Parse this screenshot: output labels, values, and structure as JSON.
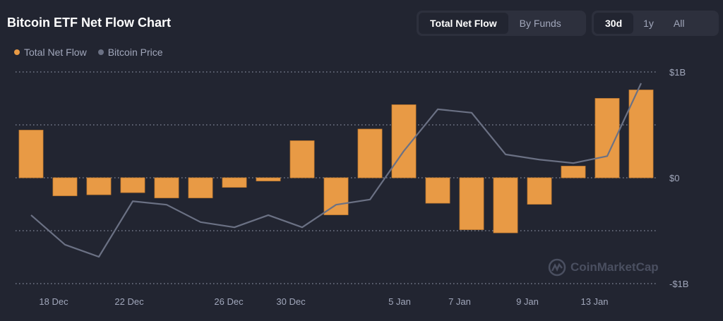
{
  "header": {
    "title": "Bitcoin ETF Net Flow Chart"
  },
  "view_toggle": {
    "options": [
      "Total Net Flow",
      "By Funds"
    ],
    "selected": "Total Net Flow"
  },
  "range_toggle": {
    "options": [
      "30d",
      "1y",
      "All"
    ],
    "selected": "30d"
  },
  "watermark": "CoinMarketCap",
  "colors": {
    "background": "#222531",
    "net_flow": "#e89a45",
    "price": "#6b7184",
    "grid": "#a1a7bb"
  },
  "chart_data": {
    "type": "bar",
    "legend": [
      {
        "name": "Total Net Flow",
        "color": "#e89a45"
      },
      {
        "name": "Bitcoin Price",
        "color": "#6b7184"
      }
    ],
    "legend_position": "top-left",
    "ylim": [
      -1,
      1
    ],
    "yunit": "$B",
    "y_ticks": [
      {
        "value": 1,
        "label": "$1B"
      },
      {
        "value": 0,
        "label": "$0"
      },
      {
        "value": -1,
        "label": "-$1B"
      }
    ],
    "grid": true,
    "x_tick_labels": [
      "18 Dec",
      "22 Dec",
      "26 Dec",
      "30 Dec",
      "5 Jan",
      "7 Jan",
      "9 Jan",
      "13 Jan"
    ],
    "series": [
      {
        "name": "Total Net Flow",
        "type": "bar",
        "values": [
          0.45,
          -0.17,
          -0.16,
          -0.14,
          -0.19,
          -0.19,
          -0.09,
          -0.03,
          0.35,
          -0.35,
          0.46,
          0.69,
          -0.24,
          -0.49,
          -0.52,
          -0.25,
          0.11,
          0.75,
          0.83
        ]
      },
      {
        "name": "Bitcoin Price",
        "type": "line",
        "scale": "relative (min=0, max=1)",
        "values": [
          0.24,
          0.07,
          0,
          0.32,
          0.3,
          0.2,
          0.17,
          0.24,
          0.17,
          0.3,
          0.33,
          0.61,
          0.85,
          0.83,
          0.59,
          0.56,
          0.54,
          0.58,
          1
        ]
      }
    ]
  }
}
